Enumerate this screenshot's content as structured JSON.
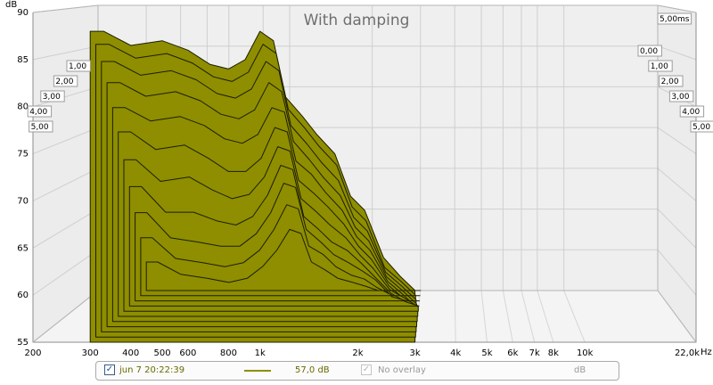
{
  "chart_data": {
    "type": "area",
    "subtype": "waterfall-3d",
    "title": "With damping",
    "ylabel": "dB",
    "xlabel": "Hz",
    "x_scale": "log",
    "xlim": [
      200,
      22000
    ],
    "ylim": [
      55,
      90
    ],
    "y_ticks": [
      "55",
      "60",
      "65",
      "70",
      "75",
      "80",
      "85",
      "90"
    ],
    "x_ticks": [
      "200",
      "300",
      "400",
      "500",
      "600",
      "800",
      "1k",
      "2k",
      "3k",
      "4k",
      "5k",
      "6k",
      "7k",
      "8k",
      "10k",
      "22,0k"
    ],
    "time_unit": "ms",
    "time_ticks_left": [
      "1,00",
      "2,00",
      "3,00",
      "4,00",
      "5,00"
    ],
    "time_ticks_right": [
      "0,00",
      "1,00",
      "2,00",
      "3,00",
      "4,00",
      "5,00"
    ],
    "time_corner_label": "5,00ms",
    "grid": true,
    "fill_color": "#8e8e00",
    "series": [
      {
        "time_ms": 0.0,
        "freq_hz": [
          300,
          330,
          400,
          500,
          600,
          700,
          800,
          900,
          1000,
          1100,
          1200,
          1350,
          1500,
          1700,
          1900,
          2100,
          2400,
          2700,
          3000
        ],
        "db": [
          88,
          88,
          86.5,
          87,
          86,
          84.5,
          84,
          85,
          88,
          87,
          81,
          79,
          77,
          75,
          70.5,
          69,
          64,
          62,
          60.5
        ]
      },
      {
        "time_ms": 0.5,
        "freq_hz": [
          300,
          330,
          400,
          500,
          600,
          700,
          800,
          900,
          1000,
          1100,
          1200,
          1350,
          1500,
          1700,
          1900,
          2100,
          2400,
          2700,
          3000
        ],
        "db": [
          86.5,
          86.5,
          85,
          85.5,
          84.5,
          83,
          82.5,
          83.5,
          86.5,
          85.5,
          79.5,
          77.5,
          75.5,
          73.5,
          69,
          67.5,
          62.5,
          61,
          59.5
        ]
      },
      {
        "time_ms": 1.0,
        "freq_hz": [
          300,
          330,
          400,
          500,
          600,
          700,
          800,
          900,
          1000,
          1100,
          1200,
          1350,
          1500,
          1700,
          1900,
          2100,
          2400,
          2700,
          3000
        ],
        "db": [
          84.5,
          84.5,
          83,
          83.5,
          82.5,
          81,
          80.5,
          81.5,
          84.5,
          83.5,
          77.5,
          75.5,
          73.5,
          71.5,
          67.5,
          66,
          61.5,
          60,
          58.5
        ]
      },
      {
        "time_ms": 1.5,
        "freq_hz": [
          300,
          330,
          400,
          500,
          600,
          700,
          800,
          900,
          1000,
          1100,
          1200,
          1350,
          1500,
          1700,
          1900,
          2100,
          2400,
          2700,
          3000
        ],
        "db": [
          82,
          82,
          80.5,
          81,
          80,
          78.5,
          78,
          79,
          82,
          81,
          75.5,
          73.5,
          71.5,
          69.5,
          66,
          64.5,
          60.5,
          59,
          57.5
        ]
      },
      {
        "time_ms": 2.0,
        "freq_hz": [
          300,
          330,
          400,
          500,
          600,
          700,
          800,
          900,
          1000,
          1100,
          1200,
          1350,
          1500,
          1700,
          1900,
          2100,
          2400,
          2700,
          3000
        ],
        "db": [
          79,
          79,
          77.5,
          78,
          77,
          75.5,
          75,
          76,
          79,
          78.5,
          73,
          71.5,
          69.5,
          67.5,
          64.5,
          63,
          59.5,
          58,
          56.5
        ]
      },
      {
        "time_ms": 2.5,
        "freq_hz": [
          300,
          330,
          400,
          500,
          600,
          700,
          800,
          900,
          1000,
          1100,
          1200,
          1350,
          1500,
          1700,
          1900,
          2100,
          2400,
          2700,
          3000
        ],
        "db": [
          76,
          76,
          74,
          74.5,
          73,
          71.5,
          71.5,
          73,
          76.5,
          76,
          70.5,
          69,
          67.5,
          65.5,
          63,
          61.5,
          58.5,
          57,
          56
        ]
      },
      {
        "time_ms": 3.0,
        "freq_hz": [
          300,
          330,
          400,
          500,
          600,
          700,
          800,
          900,
          1000,
          1100,
          1200,
          1350,
          1500,
          1700,
          1900,
          2100,
          2400,
          2700,
          3000
        ],
        "db": [
          72.5,
          72.5,
          70,
          70.5,
          69,
          68,
          68.5,
          70.5,
          74,
          73.5,
          68,
          66.5,
          65,
          63.5,
          61.5,
          60,
          57.5,
          56.5,
          55.5
        ]
      },
      {
        "time_ms": 3.5,
        "freq_hz": [
          300,
          330,
          400,
          500,
          600,
          700,
          800,
          900,
          1000,
          1100,
          1200,
          1350,
          1500,
          1700,
          1900,
          2100,
          2400,
          2700,
          3000
        ],
        "db": [
          69,
          69,
          66,
          66,
          65,
          64.5,
          65.5,
          68,
          71.5,
          71,
          65.5,
          64,
          62.5,
          61.5,
          60,
          58.5,
          56.5,
          55.5,
          55
        ]
      },
      {
        "time_ms": 4.0,
        "freq_hz": [
          300,
          330,
          400,
          500,
          600,
          700,
          800,
          900,
          1000,
          1100,
          1200,
          1350,
          1500,
          1700,
          1900,
          2100,
          2400,
          2700,
          3000
        ],
        "db": [
          65.5,
          65.5,
          62.5,
          62,
          61.5,
          61.5,
          63,
          65.5,
          69,
          68.5,
          63.5,
          62,
          60.5,
          59.5,
          58.5,
          57.5,
          55.5,
          55,
          55
        ]
      },
      {
        "time_ms": 4.5,
        "freq_hz": [
          300,
          330,
          400,
          500,
          600,
          700,
          800,
          900,
          1000,
          1100,
          1200,
          1350,
          1500,
          1700,
          1900,
          2100,
          2400,
          2700,
          3000
        ],
        "db": [
          62,
          62,
          59.5,
          59,
          58.5,
          59,
          60.5,
          63,
          66,
          65.5,
          61,
          60,
          58.5,
          57.5,
          57,
          56,
          55,
          55,
          55
        ]
      },
      {
        "time_ms": 5.0,
        "freq_hz": [
          300,
          330,
          400,
          500,
          600,
          700,
          800,
          900,
          1000,
          1100,
          1200,
          1350,
          1500,
          1700,
          1900,
          2100,
          2400,
          2700,
          3000
        ],
        "db": [
          58.5,
          58.5,
          57,
          56.5,
          56,
          56.5,
          58,
          60,
          62.5,
          62,
          58.5,
          57.5,
          56.5,
          56,
          55.5,
          55,
          55,
          55,
          55
        ]
      }
    ]
  },
  "legend": {
    "measurement_label": "jun 7 20:22:39",
    "measurement_value": "57,0 dB",
    "overlay_label": "No overlay",
    "overlay_unit": "dB",
    "measurement_color": "#8e8e00"
  }
}
